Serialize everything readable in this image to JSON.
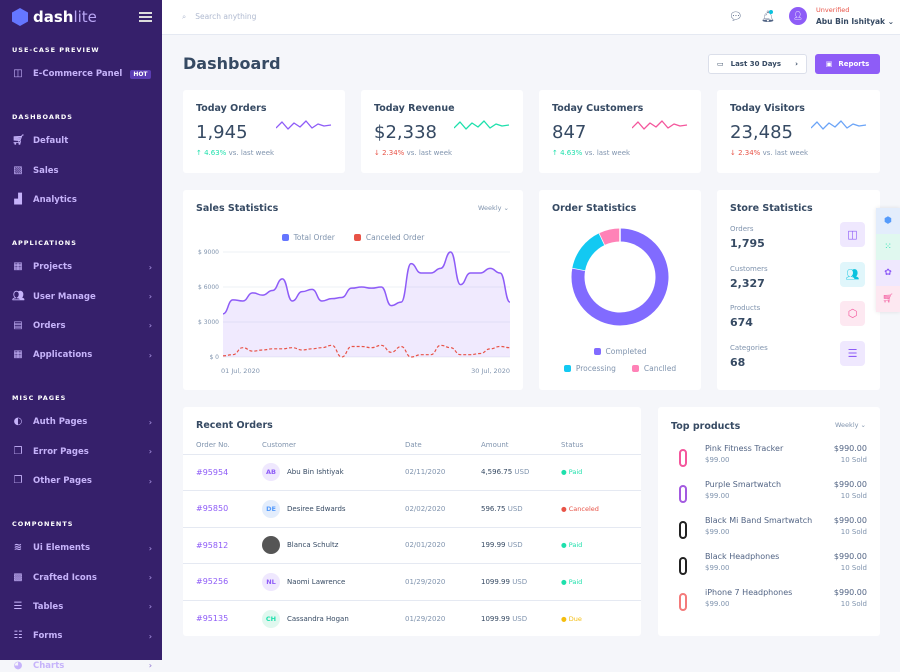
{
  "brand": {
    "name_a": "dash",
    "name_b": "lite"
  },
  "sidebar": {
    "sections": [
      {
        "title": "USE-CASE PREVIEW",
        "items": [
          {
            "label": "E-Commerce Panel",
            "icon": "bag-icon",
            "badge": "HOT"
          }
        ]
      },
      {
        "title": "DASHBOARDS",
        "items": [
          {
            "label": "Default",
            "icon": "cart-icon"
          },
          {
            "label": "Sales",
            "icon": "activity-icon"
          },
          {
            "label": "Analytics",
            "icon": "bar-chart-icon"
          }
        ]
      },
      {
        "title": "APPLICATIONS",
        "items": [
          {
            "label": "Projects",
            "icon": "grid-icon"
          },
          {
            "label": "User Manage",
            "icon": "users-icon"
          },
          {
            "label": "Orders",
            "icon": "card-icon"
          },
          {
            "label": "Applications",
            "icon": "apps-icon"
          }
        ]
      },
      {
        "title": "MISC PAGES",
        "items": [
          {
            "label": "Auth Pages",
            "icon": "auth-icon"
          },
          {
            "label": "Error Pages",
            "icon": "files-icon"
          },
          {
            "label": "Other Pages",
            "icon": "files-icon"
          }
        ]
      },
      {
        "title": "COMPONENTS",
        "items": [
          {
            "label": "Ui Elements",
            "icon": "layers-icon"
          },
          {
            "label": "Crafted Icons",
            "icon": "icons-grid-icon"
          },
          {
            "label": "Tables",
            "icon": "table-icon"
          },
          {
            "label": "Forms",
            "icon": "form-icon"
          },
          {
            "label": "Charts",
            "icon": "pie-icon"
          }
        ]
      }
    ]
  },
  "topbar": {
    "search_placeholder": "Search anything",
    "user_status": "Unverified",
    "user_name": "Abu Bin Ishityak"
  },
  "page": {
    "title": "Dashboard",
    "range_label": "Last 30 Days",
    "reports_label": "Reports"
  },
  "stats": [
    {
      "title": "Today Orders",
      "value": "1,945",
      "change": "4.63%",
      "dir": "up",
      "suffix": "vs. last week",
      "color": "#8e5cf7"
    },
    {
      "title": "Today Revenue",
      "value": "$2,338",
      "change": "2.34%",
      "dir": "down",
      "suffix": "vs. last week",
      "color": "#1ee0ac"
    },
    {
      "title": "Today Customers",
      "value": "847",
      "change": "4.63%",
      "dir": "up",
      "suffix": "vs. last week",
      "color": "#f4569c"
    },
    {
      "title": "Today Visitors",
      "value": "23,485",
      "change": "2.34%",
      "dir": "down",
      "suffix": "vs. last week",
      "color": "#6ba4f7"
    }
  ],
  "sales": {
    "title": "Sales Statistics",
    "filter": "Weekly"
  },
  "order_stats": {
    "title": "Order Statistics"
  },
  "store": {
    "title": "Store Statistics",
    "items": [
      {
        "label": "Orders",
        "value": "1,795",
        "icon": "bag-icon",
        "bg": "#efe8fe",
        "fg": "#8e5cf7"
      },
      {
        "label": "Customers",
        "value": "2,327",
        "icon": "users-icon",
        "bg": "#e0f6fb",
        "fg": "#09c2de"
      },
      {
        "label": "Products",
        "value": "674",
        "icon": "box-icon",
        "bg": "#fde8f1",
        "fg": "#f4569c"
      },
      {
        "label": "Categories",
        "value": "68",
        "icon": "server-icon",
        "bg": "#efe8fe",
        "fg": "#8e5cf7"
      }
    ]
  },
  "recent": {
    "title": "Recent Orders",
    "headers": [
      "Order No.",
      "Customer",
      "Date",
      "Amount",
      "Status"
    ],
    "rows": [
      {
        "no": "#95954",
        "initials": "AB",
        "name": "Abu Bin Ishtiyak",
        "date": "02/11/2020",
        "amount": "4,596.75",
        "cur": "USD",
        "status": "Paid",
        "sc": "#1ee0ac",
        "avbg": "#efe8fe",
        "avfg": "#8e5cf7"
      },
      {
        "no": "#95850",
        "initials": "DE",
        "name": "Desiree Edwards",
        "date": "02/02/2020",
        "amount": "596.75",
        "cur": "USD",
        "status": "Canceled",
        "sc": "#e85347",
        "avbg": "#e3edfc",
        "avfg": "#559bfb"
      },
      {
        "no": "#95812",
        "initials": "",
        "name": "Blanca Schultz",
        "date": "02/01/2020",
        "amount": "199.99",
        "cur": "USD",
        "status": "Paid",
        "sc": "#1ee0ac",
        "avbg": "#555",
        "avfg": "#fff"
      },
      {
        "no": "#95256",
        "initials": "NL",
        "name": "Naomi Lawrence",
        "date": "01/29/2020",
        "amount": "1099.99",
        "cur": "USD",
        "status": "Paid",
        "sc": "#1ee0ac",
        "avbg": "#efe8fe",
        "avfg": "#8e5cf7"
      },
      {
        "no": "#95135",
        "initials": "CH",
        "name": "Cassandra Hogan",
        "date": "01/29/2020",
        "amount": "1099.99",
        "cur": "USD",
        "status": "Due",
        "sc": "#f4bd0e",
        "avbg": "#e0f8ef",
        "avfg": "#1ee0ac"
      }
    ]
  },
  "top_products": {
    "title": "Top products",
    "filter": "Weekly",
    "items": [
      {
        "name": "Pink Fitness Tracker",
        "price": "$99.00",
        "total": "$990.00",
        "sold": "10 Sold",
        "color": "#f4569c"
      },
      {
        "name": "Purple Smartwatch",
        "price": "$99.00",
        "total": "$990.00",
        "sold": "10 Sold",
        "color": "#a35ae0"
      },
      {
        "name": "Black Mi Band Smartwatch",
        "price": "$99.00",
        "total": "$990.00",
        "sold": "10 Sold",
        "color": "#222"
      },
      {
        "name": "Black Headphones",
        "price": "$99.00",
        "total": "$990.00",
        "sold": "10 Sold",
        "color": "#222"
      },
      {
        "name": "iPhone 7 Headphones",
        "price": "$99.00",
        "total": "$990.00",
        "sold": "10 Sold",
        "color": "#f47a7a"
      }
    ]
  },
  "chart_data": [
    {
      "type": "area",
      "title": "Sales Statistics",
      "x_labels": [
        "01 Jul, 2020",
        "30 Jul, 2020"
      ],
      "y_ticks": [
        "$ 0",
        "$ 3000",
        "$ 6000",
        "$ 9000"
      ],
      "ylim": [
        0,
        9000
      ],
      "legend": "top",
      "grid": true,
      "series": [
        {
          "name": "Total Order",
          "color": "#8e5cf7",
          "values": [
            3700,
            4900,
            4800,
            5500,
            5300,
            5700,
            6700,
            4800,
            5600,
            5800,
            4800,
            5000,
            5100,
            5900,
            6000,
            5900,
            6000,
            4400,
            4700,
            8000,
            7200,
            7200,
            7600,
            9000,
            6200,
            7200,
            7200,
            7600,
            7200,
            4700
          ]
        },
        {
          "name": "Canceled Order",
          "color": "#e85347",
          "values": [
            100,
            200,
            800,
            500,
            600,
            700,
            700,
            800,
            600,
            700,
            800,
            1000,
            0,
            900,
            900,
            800,
            1000,
            400,
            900,
            0,
            200,
            200,
            1000,
            800,
            200,
            200,
            300,
            700,
            900,
            800
          ]
        }
      ]
    },
    {
      "type": "pie",
      "title": "Order Statistics",
      "legend": "bottom",
      "series": [
        {
          "name": "Completed",
          "value": 78,
          "color": "#816bff"
        },
        {
          "name": "Processing",
          "value": 15,
          "color": "#13c9f2"
        },
        {
          "name": "Cancelled",
          "value": 7,
          "color": "#ff82b7"
        }
      ],
      "labels": [
        "Completed",
        "Processing",
        "Canclled"
      ]
    }
  ]
}
